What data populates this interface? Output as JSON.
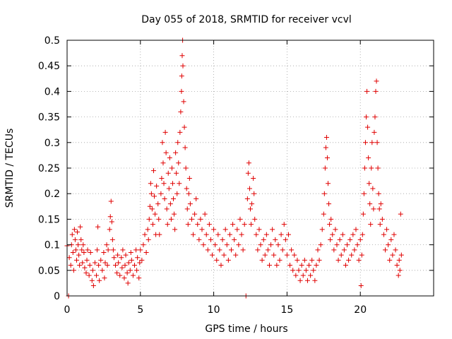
{
  "chart_data": {
    "type": "scatter",
    "title": "Day 055 of 2018, SRMTID for receiver vcvl",
    "xlabel": "GPS time / hours",
    "ylabel": "SRMTID / TECUs",
    "xlim": [
      0,
      25
    ],
    "ylim": [
      0,
      0.5
    ],
    "xticks": [
      0,
      5,
      10,
      15,
      20
    ],
    "xtick_labels": [
      "0",
      "5",
      "10",
      "15",
      "20"
    ],
    "yticks": [
      0,
      0.05,
      0.1,
      0.15,
      0.2,
      0.25,
      0.3,
      0.35,
      0.4,
      0.45,
      0.5
    ],
    "ytick_labels": [
      "0",
      "0.05",
      "0.1",
      "0.15",
      "0.2",
      "0.25",
      "0.3",
      "0.35",
      "0.4",
      "0.45",
      "0.5"
    ],
    "grid": true,
    "marker_color": "#e00000",
    "series": [
      {
        "name": "SRMTID",
        "points": [
          [
            0.0,
            0.098
          ],
          [
            0.1,
            0.0
          ],
          [
            0.15,
            0.075
          ],
          [
            0.25,
            0.06
          ],
          [
            0.3,
            0.1
          ],
          [
            0.35,
            0.12
          ],
          [
            0.4,
            0.085
          ],
          [
            0.45,
            0.05
          ],
          [
            0.5,
            0.13
          ],
          [
            0.55,
            0.11
          ],
          [
            0.6,
            0.09
          ],
          [
            0.65,
            0.07
          ],
          [
            0.7,
            0.125
          ],
          [
            0.75,
            0.1
          ],
          [
            0.8,
            0.08
          ],
          [
            0.85,
            0.06
          ],
          [
            0.9,
            0.135
          ],
          [
            0.95,
            0.11
          ],
          [
            1.0,
            0.09
          ],
          [
            1.05,
            0.065
          ],
          [
            1.1,
            0.1
          ],
          [
            1.15,
            0.085
          ],
          [
            1.2,
            0.055
          ],
          [
            1.3,
            0.045
          ],
          [
            1.35,
            0.07
          ],
          [
            1.4,
            0.09
          ],
          [
            1.5,
            0.04
          ],
          [
            1.55,
            0.06
          ],
          [
            1.6,
            0.085
          ],
          [
            1.7,
            0.03
          ],
          [
            1.75,
            0.05
          ],
          [
            1.8,
            0.02
          ],
          [
            1.9,
            0.065
          ],
          [
            2.0,
            0.04
          ],
          [
            2.05,
            0.09
          ],
          [
            2.1,
            0.135
          ],
          [
            2.15,
            0.06
          ],
          [
            2.2,
            0.03
          ],
          [
            2.3,
            0.07
          ],
          [
            2.4,
            0.05
          ],
          [
            2.5,
            0.085
          ],
          [
            2.55,
            0.035
          ],
          [
            2.6,
            0.065
          ],
          [
            2.7,
            0.1
          ],
          [
            2.75,
            0.06
          ],
          [
            2.8,
            0.09
          ],
          [
            2.9,
            0.13
          ],
          [
            2.95,
            0.155
          ],
          [
            3.0,
            0.185
          ],
          [
            3.05,
            0.145
          ],
          [
            3.1,
            0.11
          ],
          [
            3.15,
            0.09
          ],
          [
            3.2,
            0.075
          ],
          [
            3.3,
            0.06
          ],
          [
            3.4,
            0.045
          ],
          [
            3.45,
            0.08
          ],
          [
            3.5,
            0.065
          ],
          [
            3.6,
            0.04
          ],
          [
            3.7,
            0.075
          ],
          [
            3.75,
            0.055
          ],
          [
            3.8,
            0.09
          ],
          [
            3.9,
            0.035
          ],
          [
            3.95,
            0.06
          ],
          [
            4.0,
            0.08
          ],
          [
            4.1,
            0.045
          ],
          [
            4.15,
            0.025
          ],
          [
            4.2,
            0.065
          ],
          [
            4.3,
            0.05
          ],
          [
            4.35,
            0.085
          ],
          [
            4.4,
            0.07
          ],
          [
            4.5,
            0.04
          ],
          [
            4.6,
            0.06
          ],
          [
            4.7,
            0.09
          ],
          [
            4.75,
            0.05
          ],
          [
            4.8,
            0.075
          ],
          [
            4.9,
            0.035
          ],
          [
            4.95,
            0.065
          ],
          [
            5.0,
            0.09
          ],
          [
            5.1,
            0.07
          ],
          [
            5.2,
            0.1
          ],
          [
            5.3,
            0.12
          ],
          [
            5.4,
            0.085
          ],
          [
            5.5,
            0.13
          ],
          [
            5.55,
            0.11
          ],
          [
            5.6,
            0.15
          ],
          [
            5.65,
            0.175
          ],
          [
            5.7,
            0.22
          ],
          [
            5.75,
            0.2
          ],
          [
            5.8,
            0.17
          ],
          [
            5.85,
            0.14
          ],
          [
            5.9,
            0.245
          ],
          [
            5.95,
            0.195
          ],
          [
            6.0,
            0.16
          ],
          [
            6.05,
            0.12
          ],
          [
            6.1,
            0.215
          ],
          [
            6.2,
            0.18
          ],
          [
            6.25,
            0.15
          ],
          [
            6.3,
            0.12
          ],
          [
            6.4,
            0.2
          ],
          [
            6.45,
            0.23
          ],
          [
            6.5,
            0.3
          ],
          [
            6.55,
            0.26
          ],
          [
            6.6,
            0.22
          ],
          [
            6.65,
            0.19
          ],
          [
            6.7,
            0.32
          ],
          [
            6.75,
            0.28
          ],
          [
            6.8,
            0.17
          ],
          [
            6.85,
            0.14
          ],
          [
            6.9,
            0.24
          ],
          [
            6.95,
            0.21
          ],
          [
            7.0,
            0.27
          ],
          [
            7.05,
            0.18
          ],
          [
            7.1,
            0.15
          ],
          [
            7.15,
            0.25
          ],
          [
            7.2,
            0.22
          ],
          [
            7.25,
            0.19
          ],
          [
            7.3,
            0.16
          ],
          [
            7.35,
            0.13
          ],
          [
            7.4,
            0.28
          ],
          [
            7.45,
            0.24
          ],
          [
            7.5,
            0.2
          ],
          [
            7.55,
            0.3
          ],
          [
            7.6,
            0.26
          ],
          [
            7.65,
            0.22
          ],
          [
            7.7,
            0.32
          ],
          [
            7.75,
            0.36
          ],
          [
            7.8,
            0.4
          ],
          [
            7.82,
            0.43
          ],
          [
            7.85,
            0.47
          ],
          [
            7.88,
            0.5
          ],
          [
            7.9,
            0.45
          ],
          [
            7.95,
            0.38
          ],
          [
            8.0,
            0.33
          ],
          [
            8.05,
            0.29
          ],
          [
            8.1,
            0.25
          ],
          [
            8.15,
            0.21
          ],
          [
            8.2,
            0.17
          ],
          [
            8.25,
            0.14
          ],
          [
            8.3,
            0.2
          ],
          [
            8.35,
            0.23
          ],
          [
            8.4,
            0.18
          ],
          [
            8.5,
            0.15
          ],
          [
            8.6,
            0.12
          ],
          [
            8.7,
            0.16
          ],
          [
            8.8,
            0.19
          ],
          [
            8.9,
            0.14
          ],
          [
            9.0,
            0.11
          ],
          [
            9.1,
            0.15
          ],
          [
            9.2,
            0.13
          ],
          [
            9.3,
            0.1
          ],
          [
            9.4,
            0.16
          ],
          [
            9.5,
            0.12
          ],
          [
            9.6,
            0.09
          ],
          [
            9.7,
            0.14
          ],
          [
            9.8,
            0.11
          ],
          [
            9.9,
            0.08
          ],
          [
            10.0,
            0.13
          ],
          [
            10.1,
            0.1
          ],
          [
            10.2,
            0.07
          ],
          [
            10.3,
            0.12
          ],
          [
            10.4,
            0.09
          ],
          [
            10.5,
            0.06
          ],
          [
            10.6,
            0.11
          ],
          [
            10.7,
            0.08
          ],
          [
            10.8,
            0.13
          ],
          [
            10.9,
            0.1
          ],
          [
            11.0,
            0.07
          ],
          [
            11.1,
            0.12
          ],
          [
            11.2,
            0.09
          ],
          [
            11.3,
            0.14
          ],
          [
            11.4,
            0.11
          ],
          [
            11.5,
            0.08
          ],
          [
            11.6,
            0.13
          ],
          [
            11.7,
            0.1
          ],
          [
            11.8,
            0.15
          ],
          [
            11.9,
            0.12
          ],
          [
            12.0,
            0.09
          ],
          [
            12.1,
            0.14
          ],
          [
            12.2,
            0.0
          ],
          [
            12.3,
            0.19
          ],
          [
            12.35,
            0.24
          ],
          [
            12.4,
            0.26
          ],
          [
            12.45,
            0.21
          ],
          [
            12.5,
            0.17
          ],
          [
            12.55,
            0.14
          ],
          [
            12.6,
            0.18
          ],
          [
            12.7,
            0.23
          ],
          [
            12.75,
            0.2
          ],
          [
            12.8,
            0.15
          ],
          [
            12.9,
            0.12
          ],
          [
            13.0,
            0.09
          ],
          [
            13.1,
            0.13
          ],
          [
            13.2,
            0.1
          ],
          [
            13.3,
            0.07
          ],
          [
            13.4,
            0.11
          ],
          [
            13.5,
            0.08
          ],
          [
            13.6,
            0.12
          ],
          [
            13.7,
            0.09
          ],
          [
            13.8,
            0.06
          ],
          [
            13.9,
            0.1
          ],
          [
            14.0,
            0.13
          ],
          [
            14.1,
            0.08
          ],
          [
            14.2,
            0.11
          ],
          [
            14.3,
            0.06
          ],
          [
            14.4,
            0.1
          ],
          [
            14.5,
            0.07
          ],
          [
            14.6,
            0.12
          ],
          [
            14.7,
            0.09
          ],
          [
            14.8,
            0.14
          ],
          [
            14.9,
            0.11
          ],
          [
            15.0,
            0.08
          ],
          [
            15.1,
            0.12
          ],
          [
            15.2,
            0.06
          ],
          [
            15.3,
            0.09
          ],
          [
            15.4,
            0.05
          ],
          [
            15.5,
            0.08
          ],
          [
            15.6,
            0.04
          ],
          [
            15.7,
            0.07
          ],
          [
            15.8,
            0.05
          ],
          [
            15.9,
            0.03
          ],
          [
            16.0,
            0.06
          ],
          [
            16.1,
            0.04
          ],
          [
            16.2,
            0.07
          ],
          [
            16.3,
            0.05
          ],
          [
            16.4,
            0.03
          ],
          [
            16.5,
            0.06
          ],
          [
            16.6,
            0.04
          ],
          [
            16.7,
            0.07
          ],
          [
            16.8,
            0.05
          ],
          [
            16.9,
            0.03
          ],
          [
            17.0,
            0.06
          ],
          [
            17.1,
            0.09
          ],
          [
            17.2,
            0.07
          ],
          [
            17.3,
            0.1
          ],
          [
            17.4,
            0.13
          ],
          [
            17.5,
            0.16
          ],
          [
            17.55,
            0.2
          ],
          [
            17.6,
            0.25
          ],
          [
            17.65,
            0.29
          ],
          [
            17.7,
            0.31
          ],
          [
            17.75,
            0.27
          ],
          [
            17.8,
            0.22
          ],
          [
            17.85,
            0.18
          ],
          [
            17.9,
            0.14
          ],
          [
            17.95,
            0.11
          ],
          [
            18.0,
            0.15
          ],
          [
            18.1,
            0.12
          ],
          [
            18.2,
            0.09
          ],
          [
            18.3,
            0.13
          ],
          [
            18.4,
            0.1
          ],
          [
            18.5,
            0.07
          ],
          [
            18.6,
            0.11
          ],
          [
            18.7,
            0.08
          ],
          [
            18.8,
            0.12
          ],
          [
            18.9,
            0.09
          ],
          [
            19.0,
            0.06
          ],
          [
            19.1,
            0.1
          ],
          [
            19.2,
            0.07
          ],
          [
            19.3,
            0.11
          ],
          [
            19.4,
            0.08
          ],
          [
            19.5,
            0.12
          ],
          [
            19.6,
            0.09
          ],
          [
            19.7,
            0.13
          ],
          [
            19.8,
            0.1
          ],
          [
            19.9,
            0.07
          ],
          [
            20.0,
            0.11
          ],
          [
            20.05,
            0.02
          ],
          [
            20.1,
            0.08
          ],
          [
            20.15,
            0.12
          ],
          [
            20.2,
            0.16
          ],
          [
            20.25,
            0.2
          ],
          [
            20.3,
            0.25
          ],
          [
            20.35,
            0.3
          ],
          [
            20.4,
            0.35
          ],
          [
            20.45,
            0.4
          ],
          [
            20.5,
            0.33
          ],
          [
            20.55,
            0.27
          ],
          [
            20.6,
            0.22
          ],
          [
            20.65,
            0.18
          ],
          [
            20.7,
            0.14
          ],
          [
            20.75,
            0.25
          ],
          [
            20.8,
            0.3
          ],
          [
            20.85,
            0.21
          ],
          [
            20.9,
            0.17
          ],
          [
            20.95,
            0.32
          ],
          [
            21.0,
            0.35
          ],
          [
            21.05,
            0.4
          ],
          [
            21.1,
            0.42
          ],
          [
            21.15,
            0.3
          ],
          [
            21.2,
            0.25
          ],
          [
            21.25,
            0.2
          ],
          [
            21.3,
            0.17
          ],
          [
            21.35,
            0.14
          ],
          [
            21.4,
            0.18
          ],
          [
            21.5,
            0.15
          ],
          [
            21.6,
            0.12
          ],
          [
            21.7,
            0.09
          ],
          [
            21.8,
            0.13
          ],
          [
            21.9,
            0.1
          ],
          [
            22.0,
            0.07
          ],
          [
            22.1,
            0.11
          ],
          [
            22.2,
            0.08
          ],
          [
            22.3,
            0.12
          ],
          [
            22.4,
            0.09
          ],
          [
            22.5,
            0.06
          ],
          [
            22.6,
            0.04
          ],
          [
            22.65,
            0.07
          ],
          [
            22.7,
            0.05
          ],
          [
            22.75,
            0.16
          ],
          [
            22.8,
            0.08
          ]
        ]
      }
    ]
  }
}
